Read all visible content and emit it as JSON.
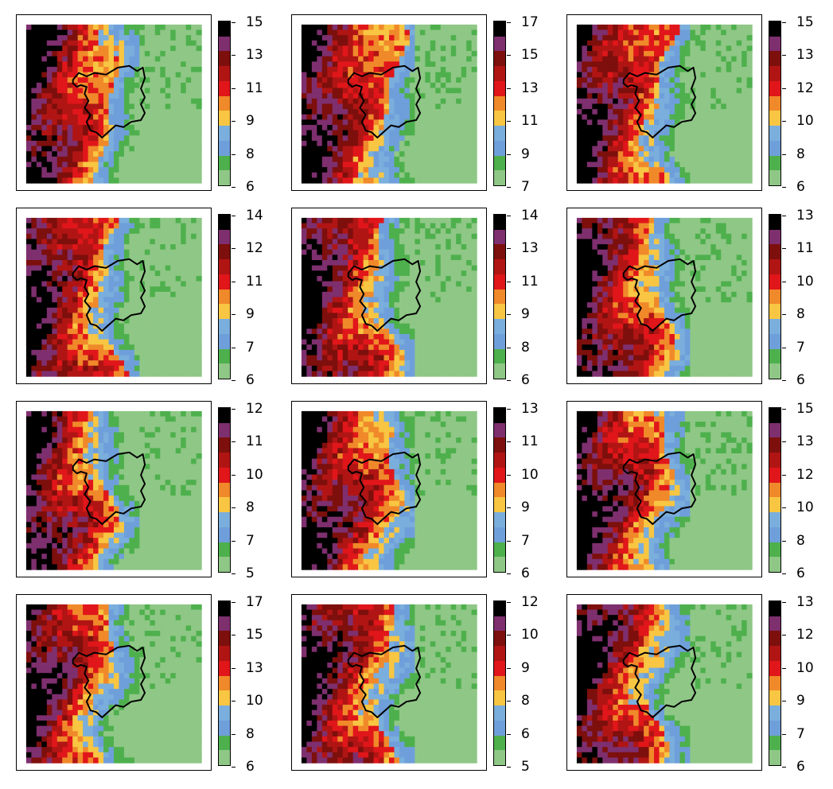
{
  "colormap": [
    "#8fc786",
    "#4eb04d",
    "#6f9fda",
    "#7aaedc",
    "#f8c642",
    "#f0892a",
    "#e0161a",
    "#b01514",
    "#7d0f0c",
    "#7e2f6e",
    "#000000"
  ],
  "panels": [
    {
      "row": 0,
      "col": 0,
      "ticks": [
        "6",
        "8",
        "9",
        "11",
        "13",
        "15"
      ],
      "west_width": 0.48,
      "divide_shift": 0.0
    },
    {
      "row": 0,
      "col": 1,
      "ticks": [
        "7",
        "9",
        "11",
        "13",
        "15",
        "17"
      ],
      "west_width": 0.5,
      "divide_shift": 0.02
    },
    {
      "row": 0,
      "col": 2,
      "ticks": [
        "6",
        "8",
        "10",
        "12",
        "13",
        "15"
      ],
      "west_width": 0.49,
      "divide_shift": 0.01
    },
    {
      "row": 1,
      "col": 0,
      "ticks": [
        "6",
        "7",
        "9",
        "11",
        "12",
        "14"
      ],
      "west_width": 0.49,
      "divide_shift": 0.0
    },
    {
      "row": 1,
      "col": 1,
      "ticks": [
        "6",
        "8",
        "9",
        "11",
        "13",
        "14"
      ],
      "west_width": 0.48,
      "divide_shift": 0.01
    },
    {
      "row": 1,
      "col": 2,
      "ticks": [
        "6",
        "7",
        "8",
        "10",
        "11",
        "13"
      ],
      "west_width": 0.5,
      "divide_shift": 0.0
    },
    {
      "row": 2,
      "col": 0,
      "ticks": [
        "5",
        "7",
        "8",
        "10",
        "11",
        "12"
      ],
      "west_width": 0.46,
      "divide_shift": -0.01
    },
    {
      "row": 2,
      "col": 1,
      "ticks": [
        "6",
        "7",
        "9",
        "10",
        "11",
        "13"
      ],
      "west_width": 0.5,
      "divide_shift": 0.02
    },
    {
      "row": 2,
      "col": 2,
      "ticks": [
        "6",
        "8",
        "10",
        "12",
        "13",
        "15"
      ],
      "west_width": 0.49,
      "divide_shift": 0.01
    },
    {
      "row": 3,
      "col": 0,
      "ticks": [
        "6",
        "8",
        "10",
        "13",
        "15",
        "17"
      ],
      "west_width": 0.47,
      "divide_shift": -0.01
    },
    {
      "row": 3,
      "col": 1,
      "ticks": [
        "5",
        "6",
        "8",
        "9",
        "10",
        "12"
      ],
      "west_width": 0.5,
      "divide_shift": 0.02
    },
    {
      "row": 3,
      "col": 2,
      "ticks": [
        "6",
        "7",
        "9",
        "10",
        "12",
        "13"
      ],
      "west_width": 0.48,
      "divide_shift": 0.01
    }
  ]
}
